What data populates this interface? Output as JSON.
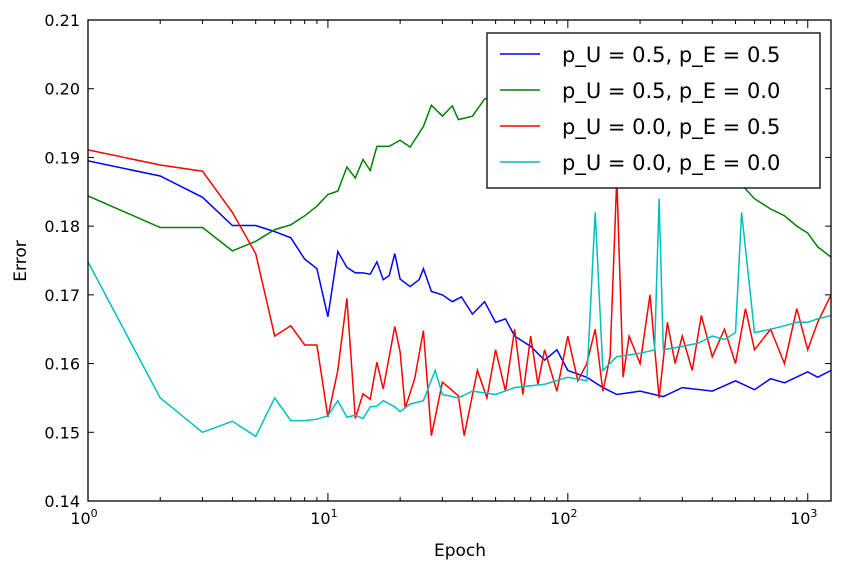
{
  "chart_data": {
    "type": "line",
    "title": "",
    "xlabel": "Epoch",
    "ylabel": "Error",
    "xscale": "log",
    "xlim": [
      1,
      1250
    ],
    "ylim": [
      0.14,
      0.21
    ],
    "yticks": [
      "0.14",
      "0.15",
      "0.16",
      "0.17",
      "0.18",
      "0.19",
      "0.20",
      "0.21"
    ],
    "xticks": [
      {
        "base": "10",
        "exp": "0",
        "value": 1
      },
      {
        "base": "10",
        "exp": "1",
        "value": 10
      },
      {
        "base": "10",
        "exp": "2",
        "value": 100
      },
      {
        "base": "10",
        "exp": "3",
        "value": 1000
      }
    ],
    "grid": false,
    "legend_position": "top-right",
    "series": [
      {
        "name": "p_U = 0.5, p_E = 0.5",
        "color": "#0000ff",
        "x": [
          1,
          2,
          3,
          4,
          5,
          6,
          7,
          8,
          9,
          10,
          11,
          12,
          13,
          14,
          15,
          16,
          17,
          18,
          19,
          20,
          22,
          24,
          25,
          27,
          30,
          33,
          36,
          40,
          45,
          50,
          55,
          60,
          70,
          80,
          90,
          100,
          120,
          140,
          160,
          200,
          250,
          300,
          400,
          500,
          600,
          700,
          800,
          1000,
          1100,
          1250
        ],
        "y": [
          0.1895,
          0.1873,
          0.1842,
          0.1801,
          0.1801,
          0.1792,
          0.1783,
          0.1752,
          0.1738,
          0.1668,
          0.1763,
          0.174,
          0.1732,
          0.1732,
          0.173,
          0.1748,
          0.1722,
          0.1728,
          0.176,
          0.1723,
          0.1712,
          0.1722,
          0.1738,
          0.1705,
          0.17,
          0.169,
          0.1697,
          0.1672,
          0.169,
          0.166,
          0.1665,
          0.164,
          0.1625,
          0.1605,
          0.162,
          0.159,
          0.158,
          0.1565,
          0.1555,
          0.156,
          0.1552,
          0.1565,
          0.156,
          0.1575,
          0.1562,
          0.1578,
          0.1572,
          0.1588,
          0.158,
          0.159
        ]
      },
      {
        "name": "p_U = 0.5, p_E = 0.0",
        "color": "#008000",
        "x": [
          1,
          2,
          3,
          4,
          5,
          6,
          7,
          8,
          9,
          10,
          11,
          12,
          13,
          14,
          15,
          16,
          18,
          20,
          22,
          25,
          27,
          30,
          33,
          35,
          40,
          45,
          50,
          60,
          80,
          100,
          150,
          200,
          300,
          400,
          450,
          500,
          600,
          700,
          800,
          900,
          1000,
          1100,
          1250
        ],
        "y": [
          0.1844,
          0.1798,
          0.1798,
          0.1764,
          0.1778,
          0.1795,
          0.1802,
          0.1815,
          0.1829,
          0.1846,
          0.1851,
          0.1886,
          0.187,
          0.1897,
          0.1881,
          0.1916,
          0.1916,
          0.1925,
          0.1915,
          0.1945,
          0.1976,
          0.196,
          0.1975,
          0.1955,
          0.196,
          0.1985,
          0.199,
          0.2,
          0.2005,
          0.201,
          0.2005,
          0.2,
          0.196,
          0.192,
          0.188,
          0.187,
          0.184,
          0.1825,
          0.1815,
          0.18,
          0.179,
          0.177,
          0.1755
        ]
      },
      {
        "name": "p_U = 0.0, p_E = 0.5",
        "color": "#ff0000",
        "x": [
          1,
          2,
          3,
          4,
          5,
          6,
          7,
          8,
          9,
          10,
          11,
          12,
          13,
          14,
          15,
          16,
          17,
          19,
          20,
          21,
          23,
          25,
          27,
          30,
          35,
          37,
          42,
          46,
          50,
          55,
          60,
          65,
          70,
          75,
          80,
          90,
          100,
          110,
          120,
          130,
          140,
          150,
          160,
          170,
          180,
          200,
          220,
          240,
          260,
          280,
          300,
          330,
          360,
          400,
          450,
          500,
          550,
          600,
          700,
          800,
          900,
          1000,
          1100,
          1250
        ],
        "y": [
          0.1911,
          0.1889,
          0.188,
          0.182,
          0.176,
          0.164,
          0.1655,
          0.1627,
          0.1627,
          0.1522,
          0.159,
          0.1695,
          0.152,
          0.1556,
          0.1548,
          0.1602,
          0.1563,
          0.1654,
          0.1617,
          0.1535,
          0.1578,
          0.1648,
          0.1495,
          0.1573,
          0.1553,
          0.1495,
          0.159,
          0.155,
          0.162,
          0.156,
          0.165,
          0.1555,
          0.164,
          0.157,
          0.162,
          0.156,
          0.164,
          0.1575,
          0.16,
          0.165,
          0.156,
          0.161,
          0.187,
          0.158,
          0.164,
          0.16,
          0.17,
          0.155,
          0.166,
          0.16,
          0.164,
          0.159,
          0.167,
          0.161,
          0.165,
          0.16,
          0.168,
          0.162,
          0.165,
          0.16,
          0.168,
          0.162,
          0.166,
          0.17
        ]
      },
      {
        "name": "p_U = 0.0, p_E = 0.0",
        "color": "#00bfbf",
        "x": [
          1,
          2,
          3,
          4,
          5,
          6,
          7,
          8,
          9,
          10,
          11,
          12,
          13,
          14,
          15,
          16,
          17,
          19,
          20,
          22,
          25,
          28,
          30,
          35,
          40,
          50,
          60,
          80,
          100,
          120,
          130,
          140,
          160,
          200,
          230,
          240,
          250,
          300,
          350,
          400,
          450,
          500,
          530,
          600,
          700,
          800,
          900,
          1000,
          1100,
          1250
        ],
        "y": [
          0.1748,
          0.155,
          0.15,
          0.1516,
          0.1494,
          0.155,
          0.1517,
          0.1517,
          0.1519,
          0.1524,
          0.1546,
          0.1522,
          0.1525,
          0.152,
          0.1537,
          0.1538,
          0.1546,
          0.1537,
          0.153,
          0.1541,
          0.1546,
          0.159,
          0.1555,
          0.155,
          0.156,
          0.1555,
          0.1565,
          0.157,
          0.158,
          0.1575,
          0.182,
          0.159,
          0.161,
          0.1615,
          0.162,
          0.184,
          0.162,
          0.1625,
          0.163,
          0.164,
          0.1635,
          0.1645,
          0.182,
          0.1645,
          0.165,
          0.1655,
          0.166,
          0.166,
          0.1665,
          0.167
        ]
      }
    ]
  }
}
